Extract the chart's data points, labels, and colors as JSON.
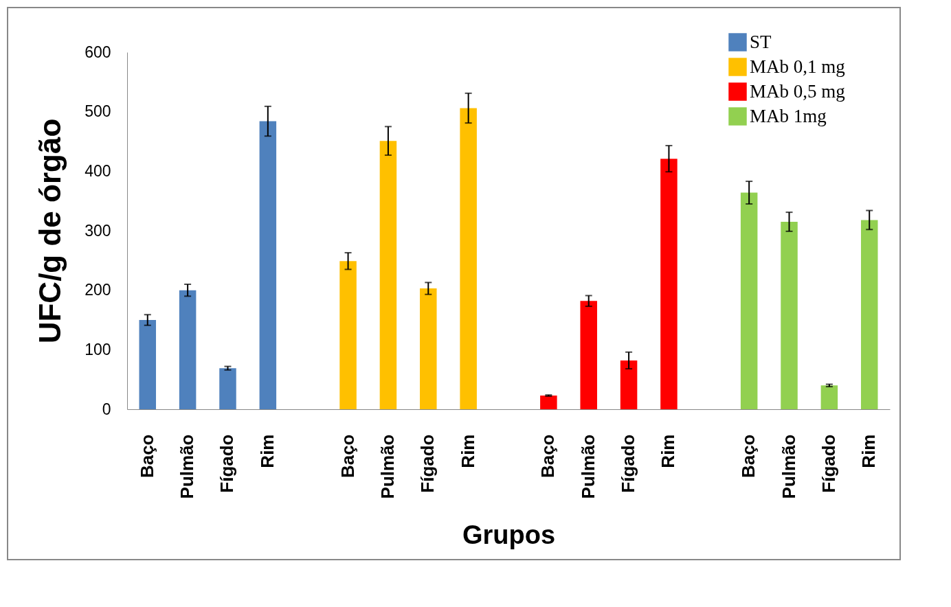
{
  "chart_data": {
    "type": "bar",
    "xlabel": "Grupos",
    "ylabel": "UFC/g de órgão",
    "categories": [
      "Baço",
      "Pulmão",
      "Fígado",
      "Rim",
      null,
      "Baço",
      "Pulmão",
      "Fígado",
      "Rim",
      null,
      "Baço",
      "Pulmão",
      "Fígado",
      "Rim",
      null,
      "Baço",
      "Pulmão",
      "Fígado",
      "Rim"
    ],
    "series": [
      {
        "name": "ST",
        "color": "#4f81bd",
        "values": [
          150,
          200,
          69,
          484,
          null,
          null,
          null,
          null,
          null,
          null,
          null,
          null,
          null,
          null,
          null,
          null,
          null,
          null,
          null
        ],
        "errors": [
          9,
          10,
          3,
          25,
          null,
          null,
          null,
          null,
          null,
          null,
          null,
          null,
          null,
          null,
          null,
          null,
          null,
          null,
          null
        ]
      },
      {
        "name": "MAb 0,1 mg",
        "color": "#ffc000",
        "values": [
          null,
          null,
          null,
          null,
          null,
          249,
          451,
          203,
          506,
          null,
          null,
          null,
          null,
          null,
          null,
          null,
          null,
          null,
          null
        ],
        "errors": [
          null,
          null,
          null,
          null,
          null,
          14,
          24,
          10,
          25,
          null,
          null,
          null,
          null,
          null,
          null,
          null,
          null,
          null,
          null
        ]
      },
      {
        "name": "MAb 0,5 mg",
        "color": "#ff0000",
        "values": [
          null,
          null,
          null,
          null,
          null,
          null,
          null,
          null,
          null,
          null,
          23,
          182,
          82,
          421,
          null,
          null,
          null,
          null,
          null
        ],
        "errors": [
          null,
          null,
          null,
          null,
          null,
          null,
          null,
          null,
          null,
          null,
          1,
          9,
          14,
          22,
          null,
          null,
          null,
          null,
          null
        ]
      },
      {
        "name": "MAb 1mg",
        "color": "#92d050",
        "values": [
          null,
          null,
          null,
          null,
          null,
          null,
          null,
          null,
          null,
          null,
          null,
          null,
          null,
          null,
          null,
          364,
          315,
          40,
          318
        ],
        "errors": [
          null,
          null,
          null,
          null,
          null,
          null,
          null,
          null,
          null,
          null,
          null,
          null,
          null,
          null,
          null,
          19,
          16,
          2,
          16
        ]
      }
    ],
    "ylim": [
      0,
      600
    ],
    "yticks": [
      0,
      100,
      200,
      300,
      400,
      500,
      600
    ],
    "grid": false,
    "legend": "top right"
  }
}
